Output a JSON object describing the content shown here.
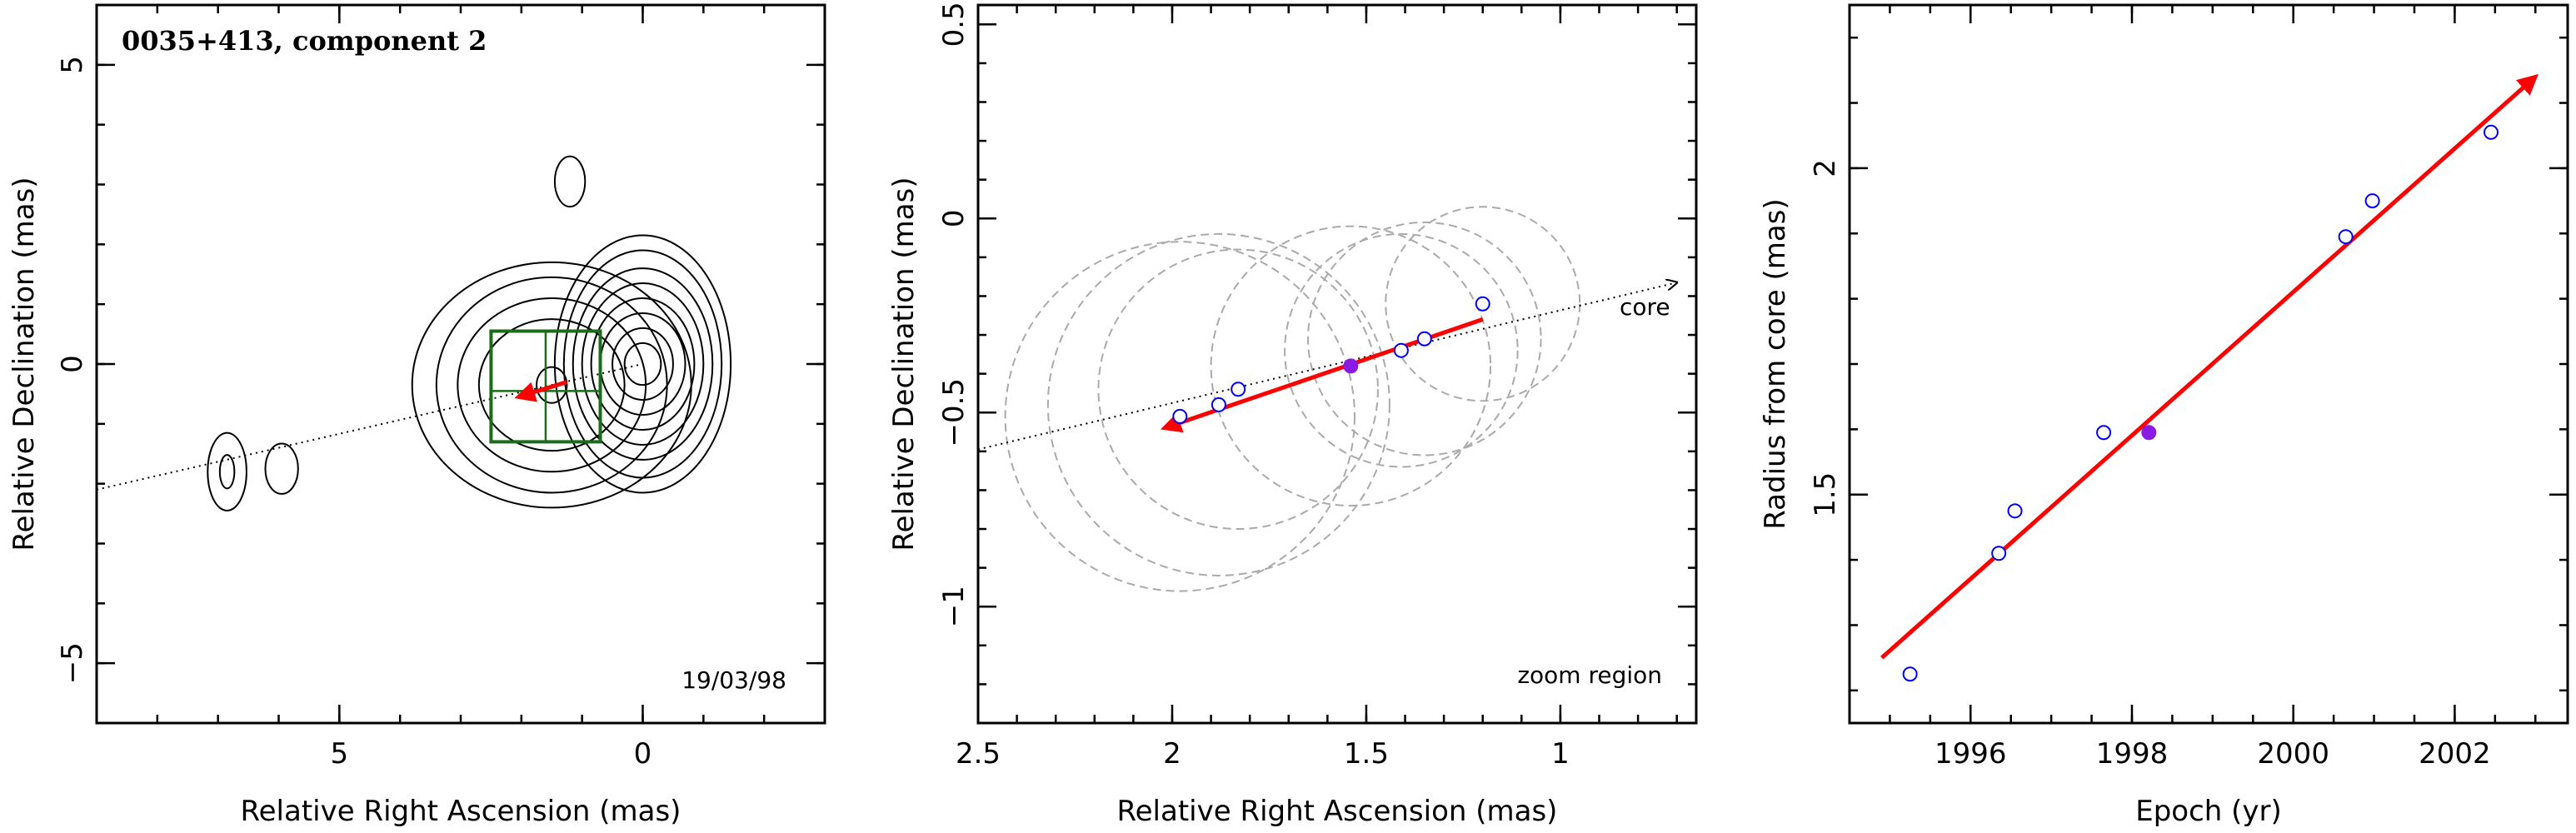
{
  "chart_data": [
    {
      "type": "contour",
      "title": "0035+413, component 2",
      "xlabel": "Relative Right Ascension (mas)",
      "ylabel": "Relative Declination (mas)",
      "xlim": [
        9,
        -3
      ],
      "ylim": [
        -6,
        6
      ],
      "xticks": [
        5,
        0
      ],
      "yticks": [
        5,
        0,
        -5
      ],
      "epoch_label": "19/03/98",
      "jet_axis": {
        "x1": 9,
        "y1": -2.1,
        "x2": 0,
        "y2": 0
      },
      "contour_groups": [
        {
          "name": "core",
          "cx": 0,
          "cy": 0,
          "rings": [
            [
              0.3,
              0.35
            ],
            [
              0.5,
              0.6
            ],
            [
              0.7,
              0.85
            ],
            [
              0.85,
              1.1
            ],
            [
              1.0,
              1.35
            ],
            [
              1.15,
              1.6
            ],
            [
              1.3,
              1.9
            ],
            [
              1.45,
              2.15
            ]
          ]
        },
        {
          "name": "component",
          "cx": 1.5,
          "cy": -0.35,
          "rings": [
            [
              0.25,
              0.3
            ],
            [
              1.2,
              1.1
            ],
            [
              1.55,
              1.45
            ],
            [
              1.9,
              1.8
            ],
            [
              2.3,
              2.05
            ]
          ]
        },
        {
          "name": "north-blob",
          "cx": 1.2,
          "cy": 3.05,
          "rings": [
            [
              0.25,
              0.42
            ]
          ]
        },
        {
          "name": "west-outer",
          "cx": 6.85,
          "cy": -1.8,
          "rings": [
            [
              0.32,
              0.65
            ]
          ]
        },
        {
          "name": "west-inner",
          "cx": 6.85,
          "cy": -1.8,
          "rings": [
            [
              0.12,
              0.28
            ]
          ]
        },
        {
          "name": "west-second",
          "cx": 5.95,
          "cy": -1.75,
          "rings": [
            [
              0.27,
              0.42
            ]
          ]
        }
      ],
      "zoom_box": {
        "x1": 2.5,
        "x2": 0.7,
        "y1": -1.3,
        "y2": 0.55,
        "color": "#1a6b1a",
        "crosshair_x": 1.6,
        "crosshair_y": -0.45
      },
      "arrow": {
        "x1": 1.25,
        "y1": -0.3,
        "x2": 2.05,
        "y2": -0.55,
        "color": "#ff0000"
      }
    },
    {
      "type": "scatter",
      "xlabel": "Relative Right Ascension (mas)",
      "ylabel": "Relative Declination (mas)",
      "xlim": [
        2.5,
        0.65
      ],
      "ylim": [
        -1.3,
        0.55
      ],
      "xticks": [
        2.5,
        2,
        1.5,
        1
      ],
      "yticks": [
        0.5,
        0,
        -0.5,
        -1
      ],
      "annotations": [
        "core",
        "zoom region"
      ],
      "points": [
        {
          "x": 1.98,
          "y": -0.51,
          "filled": false,
          "r": 0.45
        },
        {
          "x": 1.88,
          "y": -0.48,
          "filled": false,
          "r": 0.44
        },
        {
          "x": 1.83,
          "y": -0.44,
          "filled": false,
          "r": 0.36
        },
        {
          "x": 1.54,
          "y": -0.38,
          "filled": true,
          "r": 0.36
        },
        {
          "x": 1.41,
          "y": -0.34,
          "filled": false,
          "r": 0.3
        },
        {
          "x": 1.35,
          "y": -0.31,
          "filled": false,
          "r": 0.3
        },
        {
          "x": 1.2,
          "y": -0.22,
          "filled": false,
          "r": 0.25
        }
      ],
      "jet_axis": {
        "x1": 2.5,
        "y1": -0.595,
        "x2": 0.7,
        "y2": -0.165
      },
      "arrow": {
        "x1": 1.2,
        "y1": -0.26,
        "x2": 2.02,
        "y2": -0.54,
        "color": "#ff0000"
      },
      "point_color": "#0000ff",
      "filled_color": "#8a1ae6",
      "circle_color": "#aaaaaa"
    },
    {
      "type": "scatter",
      "xlabel": "Epoch (yr)",
      "ylabel": "Radius from core (mas)",
      "xlim": [
        1994.5,
        2003.4
      ],
      "ylim": [
        1.15,
        2.25
      ],
      "xticks": [
        1996,
        1998,
        2000,
        2002
      ],
      "yticks": [
        2,
        1.5
      ],
      "points": [
        {
          "x": 1995.25,
          "y": 1.225,
          "filled": false
        },
        {
          "x": 1996.35,
          "y": 1.41,
          "filled": false
        },
        {
          "x": 1996.55,
          "y": 1.475,
          "filled": false
        },
        {
          "x": 1997.65,
          "y": 1.595,
          "filled": false
        },
        {
          "x": 1998.21,
          "y": 1.595,
          "filled": true
        },
        {
          "x": 2000.65,
          "y": 1.895,
          "filled": false
        },
        {
          "x": 2000.98,
          "y": 1.95,
          "filled": false
        },
        {
          "x": 2002.45,
          "y": 2.055,
          "filled": false
        }
      ],
      "fit": {
        "x1": 1994.9,
        "y1": 1.25,
        "x2": 2003.0,
        "y2": 2.14,
        "color": "#ff0000"
      },
      "point_color": "#0000ff",
      "filled_color": "#8a1ae6"
    }
  ]
}
